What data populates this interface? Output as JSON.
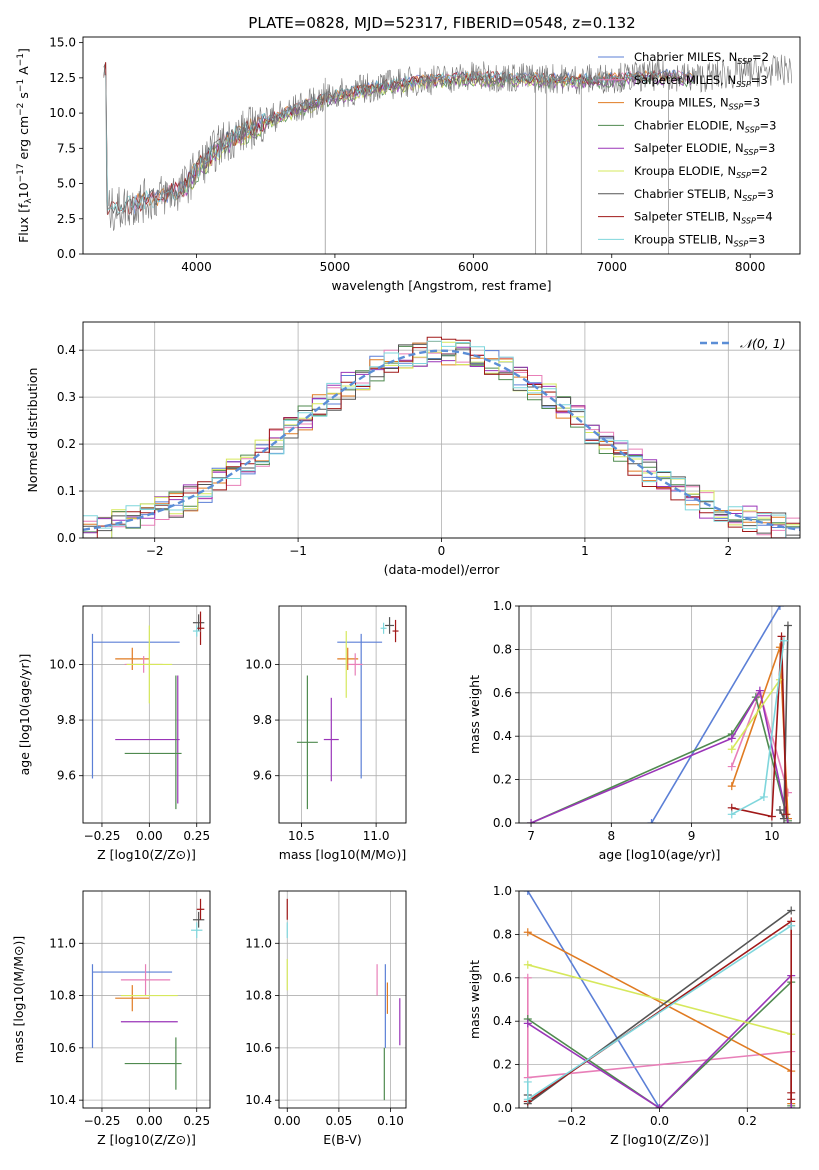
{
  "figure": {
    "title": "PLATE=0828, MJD=52317, FIBERID=0548, z=0.132"
  },
  "colors": {
    "Chabrier MILES": "#5b7fd6",
    "Salpeter MILES": "#e87fb8",
    "Kroupa MILES": "#e07b22",
    "Chabrier ELODIE": "#4f8a4f",
    "Salpeter ELODIE": "#9a35b8",
    "Kroupa ELODIE": "#d6e85c",
    "Chabrier STELIB": "#555555",
    "Salpeter STELIB": "#a01818",
    "Kroupa STELIB": "#7fd6dc",
    "normal": "#5b8ed6"
  },
  "chart_data": [
    {
      "id": "spectrum",
      "type": "line",
      "title": "PLATE=0828, MJD=52317, FIBERID=0548, z=0.132",
      "xlabel": "wavelength [Angstrom, rest frame]",
      "ylabel": "Flux [f_λ 10^-17 erg cm^-2 s^-1 A^-1]",
      "xlim": [
        3180,
        8360
      ],
      "ylim": [
        0,
        15.4
      ],
      "xticks": [
        4000,
        5000,
        6000,
        7000,
        8000
      ],
      "yticks": [
        0.0,
        2.5,
        5.0,
        7.5,
        10.0,
        12.5,
        15.0
      ],
      "grid": false,
      "legend_position": "upper-right",
      "legend": [
        "Chabrier MILES, N_SSP=2",
        "Salpeter MILES, N_SSP=3",
        "Kroupa MILES, N_SSP=3",
        "Chabrier ELODIE, N_SSP=3",
        "Salpeter ELODIE, N_SSP=3",
        "Kroupa ELODIE, N_SSP=2",
        "Chabrier STELIB, N_SSP=3",
        "Salpeter STELIB, N_SSP=4",
        "Kroupa STELIB, N_SSP=3"
      ],
      "continuum": {
        "x": [
          3350,
          3500,
          3700,
          3900,
          4000,
          4200,
          4500,
          4800,
          5000,
          5300,
          5600,
          6000,
          6400,
          6800,
          7200,
          7400,
          7600,
          8000,
          8300
        ],
        "y": [
          3.0,
          3.4,
          4.0,
          4.6,
          6.0,
          8.0,
          9.5,
          10.6,
          11.3,
          11.9,
          12.3,
          12.6,
          12.5,
          12.4,
          12.6,
          12.7,
          12.5,
          12.9,
          13.1
        ]
      },
      "spikes_x": [
        4930,
        6450,
        6530,
        6780,
        7410
      ]
    },
    {
      "id": "residual-histogram",
      "type": "bar",
      "xlabel": "(data-model)/error",
      "ylabel": "Normed distribution",
      "xlim": [
        -2.5,
        2.5
      ],
      "ylim": [
        0,
        0.46
      ],
      "xticks": [
        -2,
        -1,
        0,
        1,
        2
      ],
      "yticks": [
        0.0,
        0.1,
        0.2,
        0.3,
        0.4
      ],
      "grid": true,
      "legend": [
        "𝒩(0, 1)"
      ],
      "legend_position": "upper-right",
      "bins": 50
    },
    {
      "id": "age-vs-Z",
      "type": "scatter",
      "xlabel": "Z [log10(Z/Z⊙)]",
      "ylabel": "age [log10(age/yr)]",
      "xlim": [
        -0.35,
        0.32
      ],
      "ylim": [
        9.43,
        10.21
      ],
      "xticks": [
        -0.25,
        0.0,
        0.25
      ],
      "yticks": [
        9.6,
        9.8,
        10.0
      ],
      "grid": true,
      "points": [
        {
          "model": "Chabrier MILES",
          "x": -0.3,
          "xerr": 0.0,
          "y": 9.85,
          "yerr": 0.26
        },
        {
          "model": "Chabrier MILES",
          "x": -0.07,
          "xerr": 0.23,
          "y": 10.08,
          "yerr": 0.0
        },
        {
          "model": "Kroupa MILES",
          "x": -0.09,
          "xerr": 0.09,
          "y": 10.02,
          "yerr": 0.04
        },
        {
          "model": "Salpeter MILES",
          "x": -0.03,
          "xerr": 0.1,
          "y": 10.0,
          "yerr": 0.03
        },
        {
          "model": "Kroupa ELODIE",
          "x": 0.0,
          "xerr": 0.12,
          "y": 10.0,
          "yerr": 0.14
        },
        {
          "model": "Salpeter ELODIE",
          "x": -0.01,
          "xerr": 0.17,
          "y": 9.73,
          "yerr": 0.0
        },
        {
          "model": "Salpeter ELODIE",
          "x": 0.15,
          "xerr": 0.0,
          "y": 9.73,
          "yerr": 0.23
        },
        {
          "model": "Chabrier ELODIE",
          "x": 0.02,
          "xerr": 0.15,
          "y": 9.68,
          "yerr": 0.0
        },
        {
          "model": "Chabrier ELODIE",
          "x": 0.14,
          "xerr": 0.0,
          "y": 9.72,
          "yerr": 0.24
        },
        {
          "model": "Chabrier STELIB",
          "x": 0.26,
          "xerr": 0.03,
          "y": 10.15,
          "yerr": 0.03
        },
        {
          "model": "Salpeter STELIB",
          "x": 0.27,
          "xerr": 0.02,
          "y": 10.13,
          "yerr": 0.06
        },
        {
          "model": "Kroupa STELIB",
          "x": 0.25,
          "xerr": 0.02,
          "y": 10.12,
          "yerr": 0.02
        }
      ]
    },
    {
      "id": "age-vs-mass",
      "type": "scatter",
      "xlabel": "mass [log10(M/M⊙)]",
      "ylabel": "",
      "xlim": [
        10.35,
        11.2
      ],
      "ylim": [
        9.43,
        10.21
      ],
      "xticks": [
        10.5,
        11.0
      ],
      "yticks": [
        9.6,
        9.8,
        10.0
      ],
      "grid": true,
      "points": [
        {
          "model": "Chabrier MILES",
          "x": 10.9,
          "xerr": 0.0,
          "y": 9.85,
          "yerr": 0.26
        },
        {
          "model": "Chabrier MILES",
          "x": 10.89,
          "xerr": 0.15,
          "y": 10.08,
          "yerr": 0.0
        },
        {
          "model": "Kroupa MILES",
          "x": 10.81,
          "xerr": 0.07,
          "y": 10.02,
          "yerr": 0.04
        },
        {
          "model": "Salpeter MILES",
          "x": 10.86,
          "xerr": 0.05,
          "y": 10.0,
          "yerr": 0.04
        },
        {
          "model": "Kroupa ELODIE",
          "x": 10.8,
          "xerr": 0.0,
          "y": 10.0,
          "yerr": 0.12
        },
        {
          "model": "Salpeter ELODIE",
          "x": 10.7,
          "xerr": 0.05,
          "y": 9.73,
          "yerr": 0.15
        },
        {
          "model": "Chabrier ELODIE",
          "x": 10.54,
          "xerr": 0.07,
          "y": 9.72,
          "yerr": 0.24
        },
        {
          "model": "Chabrier STELIB",
          "x": 11.09,
          "xerr": 0.03,
          "y": 10.14,
          "yerr": 0.03
        },
        {
          "model": "Salpeter STELIB",
          "x": 11.13,
          "xerr": 0.02,
          "y": 10.12,
          "yerr": 0.04
        },
        {
          "model": "Kroupa STELIB",
          "x": 11.05,
          "xerr": 0.02,
          "y": 10.13,
          "yerr": 0.02
        }
      ]
    },
    {
      "id": "weight-vs-age",
      "type": "line",
      "xlabel": "age [log10(age/yr)]",
      "ylabel": "mass weight",
      "xlim": [
        6.85,
        10.35
      ],
      "ylim": [
        0,
        1.0
      ],
      "xticks": [
        7,
        8,
        9,
        10
      ],
      "yticks": [
        0.0,
        0.2,
        0.4,
        0.6,
        0.8,
        1.0
      ],
      "grid": true,
      "series": [
        {
          "model": "Chabrier MILES",
          "x": [
            8.5,
            10.1
          ],
          "y": [
            0.0,
            1.0
          ]
        },
        {
          "model": "Salpeter MILES",
          "x": [
            9.5,
            9.85,
            10.2
          ],
          "y": [
            0.26,
            0.6,
            0.14
          ]
        },
        {
          "model": "Kroupa MILES",
          "x": [
            9.5,
            10.1,
            10.2
          ],
          "y": [
            0.17,
            0.81,
            0.02
          ]
        },
        {
          "model": "Chabrier ELODIE",
          "x": [
            7.0,
            9.5,
            9.8,
            10.2
          ],
          "y": [
            0.0,
            0.41,
            0.58,
            0.01
          ]
        },
        {
          "model": "Salpeter ELODIE",
          "x": [
            7.0,
            9.5,
            9.85,
            10.2
          ],
          "y": [
            0.0,
            0.39,
            0.61,
            0.0
          ]
        },
        {
          "model": "Kroupa ELODIE",
          "x": [
            9.5,
            10.1
          ],
          "y": [
            0.34,
            0.66
          ]
        },
        {
          "model": "Chabrier STELIB",
          "x": [
            10.1,
            10.15,
            10.2
          ],
          "y": [
            0.06,
            0.02,
            0.91
          ]
        },
        {
          "model": "Salpeter STELIB",
          "x": [
            9.5,
            10.0,
            10.12,
            10.18
          ],
          "y": [
            0.07,
            0.03,
            0.86,
            0.04
          ]
        },
        {
          "model": "Kroupa STELIB",
          "x": [
            9.5,
            9.9,
            10.15
          ],
          "y": [
            0.04,
            0.12,
            0.84
          ]
        }
      ]
    },
    {
      "id": "mass-vs-Z",
      "type": "scatter",
      "xlabel": "Z [log10(Z/Z⊙)]",
      "ylabel": "mass [log10(M/M⊙)]",
      "xlim": [
        -0.35,
        0.32
      ],
      "ylim": [
        10.37,
        11.2
      ],
      "xticks": [
        -0.25,
        0.0,
        0.25
      ],
      "yticks": [
        10.4,
        10.6,
        10.8,
        11.0
      ],
      "grid": true,
      "points": [
        {
          "model": "Chabrier MILES",
          "x": -0.3,
          "xerr": 0.0,
          "y": 10.76,
          "yerr": 0.16
        },
        {
          "model": "Chabrier MILES",
          "x": -0.09,
          "xerr": 0.21,
          "y": 10.89,
          "yerr": 0.0
        },
        {
          "model": "Salpeter MILES",
          "x": -0.02,
          "xerr": 0.13,
          "y": 10.86,
          "yerr": 0.06
        },
        {
          "model": "Kroupa MILES",
          "x": -0.09,
          "xerr": 0.09,
          "y": 10.79,
          "yerr": 0.05
        },
        {
          "model": "Kroupa ELODIE",
          "x": 0.0,
          "xerr": 0.15,
          "y": 10.8,
          "yerr": 0.0
        },
        {
          "model": "Salpeter ELODIE",
          "x": 0.0,
          "xerr": 0.15,
          "y": 10.7,
          "yerr": 0.0
        },
        {
          "model": "Chabrier ELODIE",
          "x": 0.02,
          "xerr": 0.15,
          "y": 10.54,
          "yerr": 0.0
        },
        {
          "model": "Chabrier ELODIE",
          "x": 0.14,
          "xerr": 0.0,
          "y": 10.54,
          "yerr": 0.1
        },
        {
          "model": "Chabrier STELIB",
          "x": 0.26,
          "xerr": 0.03,
          "y": 11.09,
          "yerr": 0.03
        },
        {
          "model": "Salpeter STELIB",
          "x": 0.27,
          "xerr": 0.02,
          "y": 11.13,
          "yerr": 0.04
        },
        {
          "model": "Kroupa STELIB",
          "x": 0.25,
          "xerr": 0.03,
          "y": 11.05,
          "yerr": 0.03
        }
      ]
    },
    {
      "id": "mass-vs-ebv",
      "type": "scatter",
      "xlabel": "E(B-V)",
      "ylabel": "",
      "xlim": [
        -0.008,
        0.115
      ],
      "ylim": [
        10.37,
        11.2
      ],
      "xticks": [
        0.0,
        0.05,
        0.1
      ],
      "yticks": [
        10.4,
        10.6,
        10.8,
        11.0
      ],
      "grid": true,
      "points": [
        {
          "model": "Salpeter STELIB",
          "x": 0.0,
          "xerr": 0.0,
          "y": 11.13,
          "yerr": 0.04
        },
        {
          "model": "Kroupa STELIB",
          "x": 0.0,
          "xerr": 0.0,
          "y": 11.05,
          "yerr": 0.03
        },
        {
          "model": "Kroupa ELODIE",
          "x": 0.0,
          "xerr": 0.0,
          "y": 10.88,
          "yerr": 0.06
        },
        {
          "model": "Salpeter MILES",
          "x": 0.087,
          "xerr": 0.0,
          "y": 10.86,
          "yerr": 0.06
        },
        {
          "model": "Chabrier MILES",
          "x": 0.095,
          "xerr": 0.0,
          "y": 10.76,
          "yerr": 0.16
        },
        {
          "model": "Kroupa MILES",
          "x": 0.097,
          "xerr": 0.0,
          "y": 10.79,
          "yerr": 0.06
        },
        {
          "model": "Salpeter ELODIE",
          "x": 0.109,
          "xerr": 0.0,
          "y": 10.7,
          "yerr": 0.09
        },
        {
          "model": "Chabrier ELODIE",
          "x": 0.094,
          "xerr": 0.0,
          "y": 10.5,
          "yerr": 0.1
        }
      ]
    },
    {
      "id": "weight-vs-Z",
      "type": "line",
      "xlabel": "Z [log10(Z/Z⊙)]",
      "ylabel": "mass weight",
      "xlim": [
        -0.32,
        0.32
      ],
      "ylim": [
        0,
        1.0
      ],
      "xticks": [
        -0.2,
        0.0,
        0.2
      ],
      "yticks": [
        0.0,
        0.2,
        0.4,
        0.6,
        0.8,
        1.0
      ],
      "grid": true,
      "series": [
        {
          "model": "Chabrier MILES",
          "x": [
            -0.3,
            0.0
          ],
          "y": [
            1.0,
            0.0
          ]
        },
        {
          "model": "Salpeter MILES",
          "x": [
            -0.3,
            -0.3,
            0.3
          ],
          "y": [
            0.6,
            0.14,
            0.26
          ]
        },
        {
          "model": "Kroupa MILES",
          "x": [
            -0.3,
            0.3,
            0.3
          ],
          "y": [
            0.81,
            0.17,
            0.02
          ]
        },
        {
          "model": "Chabrier ELODIE",
          "x": [
            -0.3,
            0.0,
            0.3,
            0.3
          ],
          "y": [
            0.41,
            0.0,
            0.58,
            0.01
          ]
        },
        {
          "model": "Salpeter ELODIE",
          "x": [
            -0.3,
            0.0,
            0.3,
            0.3
          ],
          "y": [
            0.39,
            0.0,
            0.61,
            0.0
          ]
        },
        {
          "model": "Kroupa ELODIE",
          "x": [
            -0.3,
            0.3
          ],
          "y": [
            0.66,
            0.34
          ]
        },
        {
          "model": "Chabrier STELIB",
          "x": [
            -0.3,
            -0.3,
            0.3
          ],
          "y": [
            0.06,
            0.02,
            0.91
          ]
        },
        {
          "model": "Salpeter STELIB",
          "x": [
            -0.3,
            0.3,
            0.3,
            0.3
          ],
          "y": [
            0.03,
            0.86,
            0.07,
            0.04
          ]
        },
        {
          "model": "Kroupa STELIB",
          "x": [
            -0.3,
            -0.3,
            0.3
          ],
          "y": [
            0.12,
            0.04,
            0.84
          ]
        }
      ]
    }
  ]
}
